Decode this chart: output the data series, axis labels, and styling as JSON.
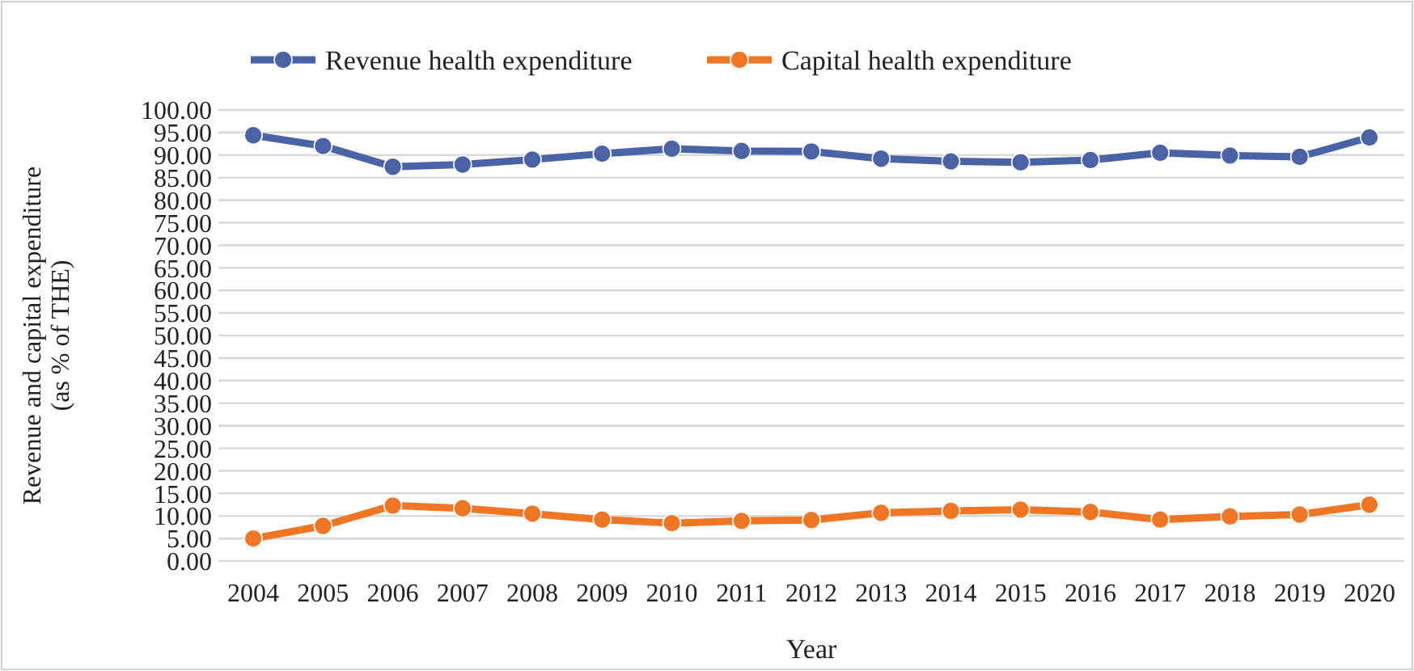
{
  "chart_data": {
    "type": "line",
    "xlabel": "Year",
    "ylabel": "Revenue and capital expenditure (as % of THE)",
    "categories": [
      "2004",
      "2005",
      "2006",
      "2007",
      "2008",
      "2009",
      "2010",
      "2011",
      "2012",
      "2013",
      "2014",
      "2015",
      "2016",
      "2017",
      "2018",
      "2019",
      "2020"
    ],
    "series": [
      {
        "name": "Revenue health expenditure",
        "color": "#4a63a6",
        "values": [
          94.4,
          92.0,
          87.4,
          87.9,
          89.0,
          90.3,
          91.4,
          90.9,
          90.8,
          89.2,
          88.6,
          88.4,
          88.9,
          90.5,
          89.9,
          89.6,
          93.9
        ]
      },
      {
        "name": "Capital health expenditure",
        "color": "#f07623",
        "values": [
          5.0,
          7.8,
          12.3,
          11.7,
          10.5,
          9.2,
          8.4,
          8.9,
          9.1,
          10.7,
          11.1,
          11.4,
          10.9,
          9.2,
          9.9,
          10.3,
          12.5
        ]
      }
    ],
    "ylim": [
      0,
      100
    ],
    "yticks": [
      {
        "value": 0,
        "label": "0.00"
      },
      {
        "value": 5,
        "label": "5.00"
      },
      {
        "value": 10,
        "label": "10.00"
      },
      {
        "value": 15,
        "label": "15.00"
      },
      {
        "value": 20,
        "label": "20.00"
      },
      {
        "value": 25,
        "label": "25.00"
      },
      {
        "value": 30,
        "label": "30.00"
      },
      {
        "value": 35,
        "label": "35.00"
      },
      {
        "value": 40,
        "label": "40.00"
      },
      {
        "value": 45,
        "label": "45.00"
      },
      {
        "value": 50,
        "label": "50.00"
      },
      {
        "value": 55,
        "label": "55.00"
      },
      {
        "value": 60,
        "label": "60.00"
      },
      {
        "value": 65,
        "label": "65.00"
      },
      {
        "value": 70,
        "label": "70.00"
      },
      {
        "value": 75,
        "label": "75.00"
      },
      {
        "value": 80,
        "label": "80.00"
      },
      {
        "value": 85,
        "label": "85.00"
      },
      {
        "value": 90,
        "label": "90.00"
      },
      {
        "value": 95,
        "label": "95.00"
      },
      {
        "value": 100,
        "label": "100.00"
      }
    ],
    "grid": "y",
    "legend": "top",
    "marker": "circle",
    "line_style": "solid"
  }
}
